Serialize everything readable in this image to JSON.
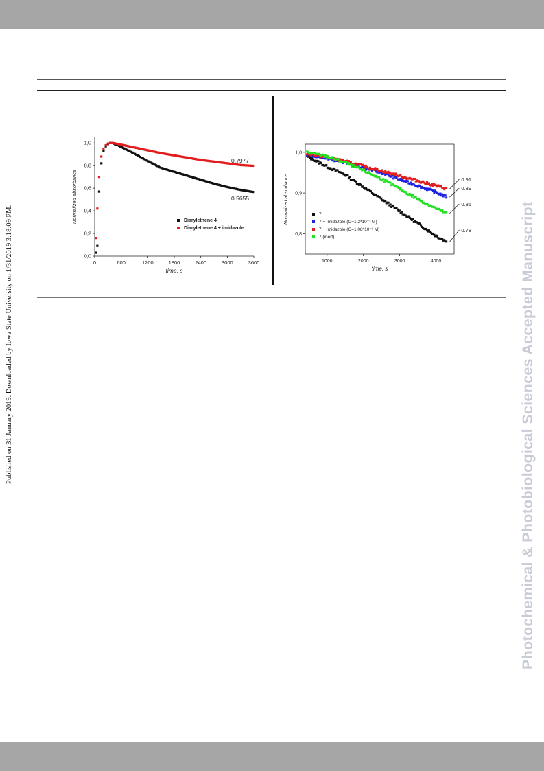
{
  "watermark_left": "Published on 31 January 2019. Downloaded by Iowa State University on 1/31/2019 3:18:09 PM.",
  "watermark_right": "Photochemical & Photobiological Sciences Accepted Manuscript",
  "colors": {
    "black_series": "#111111",
    "red_series": "#e21d1d",
    "blue_series": "#1d22e0",
    "green_series": "#22e022",
    "band": "#a6a6a6",
    "watermark": "#c8ccd6"
  },
  "chart_data": [
    {
      "type": "scatter",
      "xlabel": "time, s",
      "ylabel": "Normalized absorbance",
      "xlim": [
        0,
        3600
      ],
      "ylim": [
        0.0,
        1.05
      ],
      "xticks": [
        "0",
        "600",
        "1200",
        "1800",
        "2400",
        "3000",
        "3600"
      ],
      "yticks": [
        "0,0",
        "0,2",
        "0,4",
        "0,6",
        "0,8",
        "1,0"
      ],
      "grid": false,
      "legend_position": "lower-right",
      "series": [
        {
          "name": "Diarylethene 4",
          "color": "#111111",
          "x": [
            30,
            60,
            100,
            150,
            200,
            250,
            300,
            350,
            400,
            450,
            500,
            600,
            900,
            1200,
            1500,
            1800,
            2100,
            2400,
            2700,
            3000,
            3300,
            3600
          ],
          "y": [
            0.03,
            0.09,
            0.57,
            0.82,
            0.93,
            0.97,
            0.99,
            1.0,
            1.0,
            0.99,
            0.985,
            0.965,
            0.905,
            0.84,
            0.78,
            0.745,
            0.71,
            0.675,
            0.64,
            0.61,
            0.585,
            0.5655
          ]
        },
        {
          "name": "Diarylethene 4 + imidazole",
          "color": "#e21d1d",
          "x": [
            30,
            60,
            100,
            150,
            200,
            250,
            300,
            350,
            400,
            450,
            500,
            600,
            900,
            1200,
            1500,
            1800,
            2100,
            2400,
            2700,
            3000,
            3300,
            3600
          ],
          "y": [
            0.16,
            0.42,
            0.7,
            0.88,
            0.95,
            0.98,
            0.995,
            1.0,
            1.0,
            0.997,
            0.993,
            0.985,
            0.96,
            0.935,
            0.91,
            0.89,
            0.87,
            0.85,
            0.835,
            0.82,
            0.805,
            0.7977
          ]
        }
      ],
      "annotations": [
        "0.7977",
        "0.5655"
      ]
    },
    {
      "type": "scatter",
      "xlabel": "time, s",
      "ylabel": "Normalized absorbance",
      "xlim": [
        400,
        4500
      ],
      "ylim": [
        0.75,
        1.02
      ],
      "xticks": [
        "1000",
        "2000",
        "3000",
        "4000"
      ],
      "yticks": [
        "0,8",
        "0,9",
        "1,0"
      ],
      "grid": false,
      "legend_position": "lower-left",
      "series": [
        {
          "name": "7",
          "color": "#111111",
          "x": [
            450,
            1000,
            1500,
            2000,
            2500,
            3000,
            3500,
            4000,
            4300
          ],
          "y": [
            0.99,
            0.965,
            0.945,
            0.915,
            0.885,
            0.855,
            0.825,
            0.795,
            0.78
          ]
        },
        {
          "name": "7 + imidazole (C=1.2*10⁻³ M)",
          "color": "#1d22e0",
          "x": [
            450,
            1000,
            1500,
            2000,
            2500,
            3000,
            3500,
            4000,
            4300
          ],
          "y": [
            0.995,
            0.985,
            0.975,
            0.962,
            0.95,
            0.933,
            0.918,
            0.902,
            0.89
          ]
        },
        {
          "name": "7 + imidazole (C=1.08*10⁻² M)",
          "color": "#e21d1d",
          "x": [
            450,
            1000,
            1500,
            2000,
            2500,
            3000,
            3500,
            4000,
            4300
          ],
          "y": [
            0.997,
            0.988,
            0.978,
            0.966,
            0.955,
            0.942,
            0.93,
            0.918,
            0.91
          ]
        },
        {
          "name": "7 (inert)",
          "color": "#22e022",
          "x": [
            450,
            1000,
            1500,
            2000,
            2500,
            3000,
            3500,
            4000,
            4300
          ],
          "y": [
            1.0,
            0.99,
            0.975,
            0.955,
            0.935,
            0.91,
            0.885,
            0.862,
            0.85
          ]
        }
      ],
      "annotations": [
        "0.91",
        "0.89",
        "0.85",
        "0.78"
      ]
    }
  ]
}
